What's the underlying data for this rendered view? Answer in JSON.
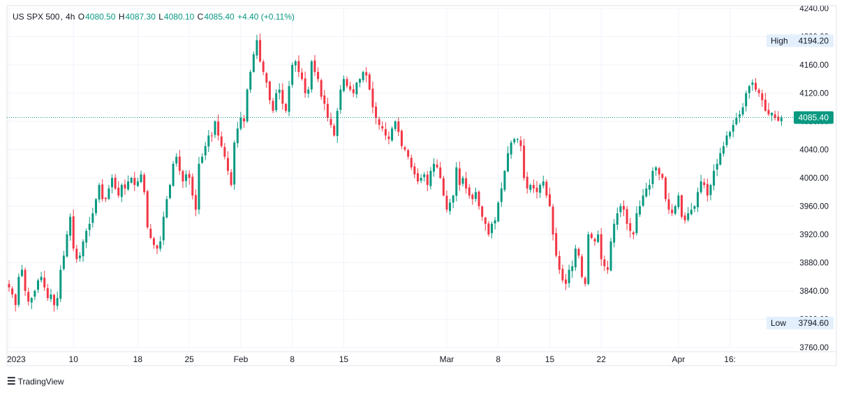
{
  "legend": {
    "symbol": "US SPX 500",
    "interval": "4h",
    "open_label": "O",
    "open": "4080.50",
    "high_label": "H",
    "high": "4087.30",
    "low_label": "L",
    "low": "4080.10",
    "close_label": "C",
    "close": "4085.40",
    "change": "+4.40 (+0.11%)"
  },
  "footer": {
    "brand": "TradingView",
    "logo_icon": "tradingview-logo-icon"
  },
  "colors": {
    "up": "#089981",
    "down": "#f23645",
    "grid": "#f0f3fa",
    "axis_text": "#131722",
    "last_price_bg": "#089981",
    "hl_bg": "#e3effd"
  },
  "chart_data": {
    "type": "candlestick",
    "ylim": [
      3760,
      4240
    ],
    "y_ticks": [
      3760,
      3800,
      3840,
      3880,
      3920,
      3960,
      4000,
      4040,
      4080,
      4120,
      4160,
      4200,
      4240
    ],
    "x_ticks": [
      {
        "label": "2023",
        "idx": 0
      },
      {
        "label": "10",
        "idx": 20
      },
      {
        "label": "18",
        "idx": 40
      },
      {
        "label": "25",
        "idx": 56
      },
      {
        "label": "Feb",
        "idx": 72
      },
      {
        "label": "8",
        "idx": 88
      },
      {
        "label": "15",
        "idx": 104
      },
      {
        "label": "Mar",
        "idx": 136
      },
      {
        "label": "8",
        "idx": 152
      },
      {
        "label": "15",
        "idx": 168
      },
      {
        "label": "22",
        "idx": 184
      },
      {
        "label": "Apr",
        "idx": 208
      },
      {
        "label": "16:",
        "idx": 224
      }
    ],
    "last_price": 4085.4,
    "last_price_label": "4085.40",
    "high": {
      "label": "High",
      "value": 4194.2,
      "value_label": "4194.20"
    },
    "low": {
      "label": "Low",
      "value": 3794.6,
      "value_label": "3794.60"
    },
    "closes": [
      3845,
      3835,
      3820,
      3860,
      3870,
      3840,
      3825,
      3830,
      3840,
      3855,
      3860,
      3845,
      3830,
      3835,
      3820,
      3830,
      3870,
      3890,
      3920,
      3945,
      3900,
      3885,
      3890,
      3910,
      3925,
      3935,
      3950,
      3970,
      3990,
      3970,
      3970,
      3985,
      4000,
      3985,
      3975,
      3990,
      3985,
      3995,
      4000,
      3990,
      3995,
      4005,
      3980,
      3930,
      3915,
      3905,
      3900,
      3910,
      3945,
      3970,
      3990,
      4020,
      4030,
      4010,
      3995,
      4005,
      4000,
      3975,
      3955,
      4020,
      4030,
      4045,
      4060,
      4060,
      4080,
      4060,
      4045,
      4030,
      4010,
      3990,
      4050,
      4070,
      4085,
      4080,
      4125,
      4150,
      4175,
      4195,
      4165,
      4150,
      4135,
      4110,
      4095,
      4120,
      4125,
      4105,
      4095,
      4130,
      4160,
      4165,
      4150,
      4140,
      4120,
      4125,
      4165,
      4150,
      4140,
      4115,
      4105,
      4085,
      4075,
      4060,
      4095,
      4125,
      4140,
      4130,
      4125,
      4120,
      4135,
      4140,
      4150,
      4145,
      4125,
      4100,
      4085,
      4075,
      4070,
      4060,
      4055,
      4070,
      4080,
      4065,
      4045,
      4040,
      4030,
      4015,
      4005,
      3995,
      4000,
      4005,
      3990,
      4010,
      4020,
      4015,
      4000,
      3975,
      3955,
      3965,
      3975,
      4015,
      3990,
      4000,
      3985,
      3975,
      3970,
      3980,
      3960,
      3945,
      3935,
      3920,
      3935,
      3940,
      3965,
      3985,
      4010,
      4035,
      4050,
      4055,
      4055,
      4045,
      4000,
      3985,
      3990,
      3985,
      3980,
      3990,
      3995,
      3975,
      3960,
      3920,
      3890,
      3870,
      3855,
      3850,
      3870,
      3875,
      3900,
      3890,
      3860,
      3850,
      3920,
      3915,
      3910,
      3920,
      3885,
      3875,
      3870,
      3910,
      3935,
      3950,
      3960,
      3955,
      3935,
      3925,
      3920,
      3950,
      3960,
      3975,
      3985,
      3990,
      4010,
      4015,
      4005,
      4000,
      3970,
      3955,
      3950,
      3960,
      3975,
      3945,
      3940,
      3950,
      3955,
      3960,
      3980,
      3995,
      3990,
      3975,
      3990,
      4010,
      4020,
      4035,
      4045,
      4060,
      4065,
      4075,
      4085,
      4090,
      4100,
      4120,
      4130,
      4135,
      4125,
      4120,
      4110,
      4095,
      4090,
      4092,
      4085,
      4081,
      4085
    ]
  }
}
